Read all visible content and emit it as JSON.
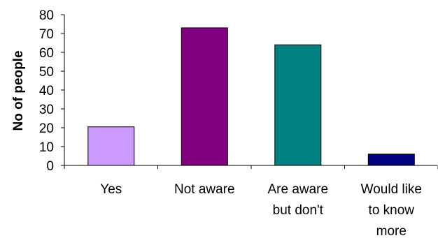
{
  "chart_data": {
    "type": "bar",
    "title": "",
    "xlabel": "",
    "ylabel": "No of people",
    "ylim": [
      0,
      80
    ],
    "yticks": [
      0,
      10,
      20,
      30,
      40,
      50,
      60,
      70,
      80
    ],
    "grid": false,
    "categories": [
      [
        "Yes"
      ],
      [
        "Not aware"
      ],
      [
        "Are aware",
        "but don't"
      ],
      [
        "Would like",
        "to know",
        "more"
      ]
    ],
    "values": [
      20.5,
      73,
      64,
      6
    ],
    "colors": [
      "#CC99FF",
      "#800080",
      "#008080",
      "#000080"
    ]
  }
}
